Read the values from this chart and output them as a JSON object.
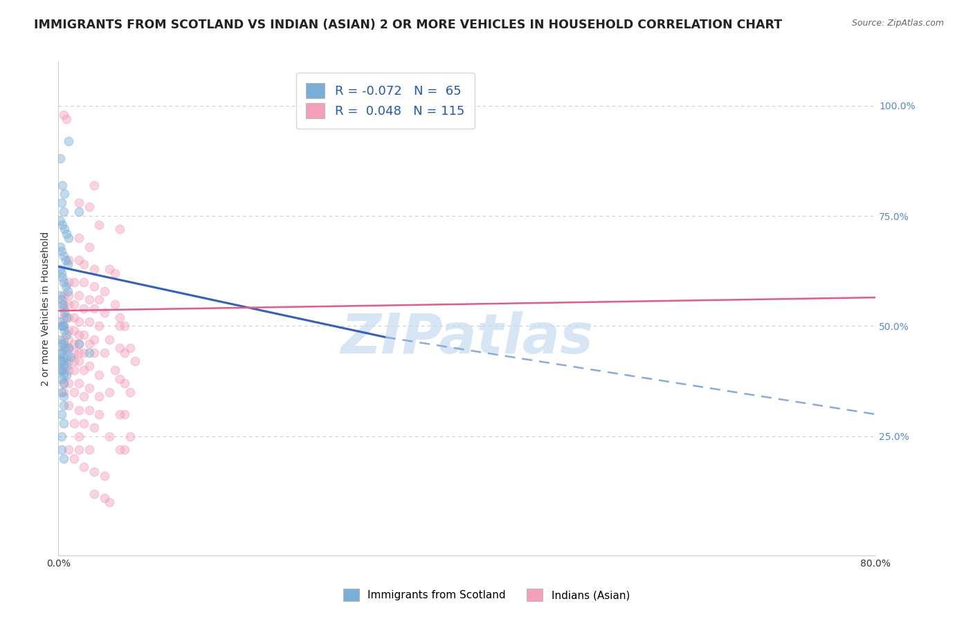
{
  "title": "IMMIGRANTS FROM SCOTLAND VS INDIAN (ASIAN) 2 OR MORE VEHICLES IN HOUSEHOLD CORRELATION CHART",
  "source": "Source: ZipAtlas.com",
  "xlim": [
    0.0,
    0.8
  ],
  "ylim": [
    -0.02,
    1.1
  ],
  "blue_dots": [
    [
      0.002,
      0.88
    ],
    [
      0.01,
      0.92
    ],
    [
      0.004,
      0.82
    ],
    [
      0.006,
      0.8
    ],
    [
      0.003,
      0.78
    ],
    [
      0.005,
      0.76
    ],
    [
      0.02,
      0.76
    ],
    [
      0.002,
      0.74
    ],
    [
      0.004,
      0.73
    ],
    [
      0.006,
      0.72
    ],
    [
      0.008,
      0.71
    ],
    [
      0.01,
      0.7
    ],
    [
      0.002,
      0.68
    ],
    [
      0.003,
      0.67
    ],
    [
      0.005,
      0.66
    ],
    [
      0.007,
      0.65
    ],
    [
      0.009,
      0.64
    ],
    [
      0.002,
      0.63
    ],
    [
      0.003,
      0.62
    ],
    [
      0.004,
      0.61
    ],
    [
      0.005,
      0.6
    ],
    [
      0.007,
      0.59
    ],
    [
      0.009,
      0.58
    ],
    [
      0.002,
      0.57
    ],
    [
      0.003,
      0.56
    ],
    [
      0.004,
      0.55
    ],
    [
      0.005,
      0.54
    ],
    [
      0.006,
      0.53
    ],
    [
      0.008,
      0.52
    ],
    [
      0.002,
      0.51
    ],
    [
      0.003,
      0.5
    ],
    [
      0.004,
      0.5
    ],
    [
      0.005,
      0.5
    ],
    [
      0.006,
      0.49
    ],
    [
      0.008,
      0.48
    ],
    [
      0.002,
      0.47
    ],
    [
      0.003,
      0.46
    ],
    [
      0.005,
      0.46
    ],
    [
      0.007,
      0.45
    ],
    [
      0.01,
      0.45
    ],
    [
      0.002,
      0.44
    ],
    [
      0.003,
      0.44
    ],
    [
      0.005,
      0.43
    ],
    [
      0.008,
      0.43
    ],
    [
      0.012,
      0.43
    ],
    [
      0.002,
      0.42
    ],
    [
      0.003,
      0.42
    ],
    [
      0.005,
      0.41
    ],
    [
      0.008,
      0.41
    ],
    [
      0.002,
      0.4
    ],
    [
      0.003,
      0.4
    ],
    [
      0.005,
      0.39
    ],
    [
      0.008,
      0.39
    ],
    [
      0.003,
      0.38
    ],
    [
      0.005,
      0.37
    ],
    [
      0.003,
      0.35
    ],
    [
      0.005,
      0.34
    ],
    [
      0.005,
      0.32
    ],
    [
      0.003,
      0.3
    ],
    [
      0.005,
      0.28
    ],
    [
      0.003,
      0.25
    ],
    [
      0.003,
      0.22
    ],
    [
      0.005,
      0.2
    ],
    [
      0.02,
      0.46
    ],
    [
      0.03,
      0.44
    ]
  ],
  "pink_dots": [
    [
      0.005,
      0.98
    ],
    [
      0.008,
      0.97
    ],
    [
      0.035,
      0.82
    ],
    [
      0.02,
      0.78
    ],
    [
      0.03,
      0.77
    ],
    [
      0.04,
      0.73
    ],
    [
      0.06,
      0.72
    ],
    [
      0.02,
      0.7
    ],
    [
      0.03,
      0.68
    ],
    [
      0.01,
      0.65
    ],
    [
      0.02,
      0.65
    ],
    [
      0.025,
      0.64
    ],
    [
      0.035,
      0.63
    ],
    [
      0.05,
      0.63
    ],
    [
      0.055,
      0.62
    ],
    [
      0.01,
      0.6
    ],
    [
      0.015,
      0.6
    ],
    [
      0.025,
      0.6
    ],
    [
      0.035,
      0.59
    ],
    [
      0.045,
      0.58
    ],
    [
      0.005,
      0.57
    ],
    [
      0.01,
      0.57
    ],
    [
      0.02,
      0.57
    ],
    [
      0.03,
      0.56
    ],
    [
      0.04,
      0.56
    ],
    [
      0.055,
      0.55
    ],
    [
      0.005,
      0.55
    ],
    [
      0.01,
      0.55
    ],
    [
      0.015,
      0.55
    ],
    [
      0.025,
      0.54
    ],
    [
      0.035,
      0.54
    ],
    [
      0.045,
      0.53
    ],
    [
      0.005,
      0.52
    ],
    [
      0.01,
      0.52
    ],
    [
      0.015,
      0.52
    ],
    [
      0.02,
      0.51
    ],
    [
      0.03,
      0.51
    ],
    [
      0.04,
      0.5
    ],
    [
      0.06,
      0.5
    ],
    [
      0.005,
      0.5
    ],
    [
      0.01,
      0.49
    ],
    [
      0.015,
      0.49
    ],
    [
      0.02,
      0.48
    ],
    [
      0.025,
      0.48
    ],
    [
      0.035,
      0.47
    ],
    [
      0.05,
      0.47
    ],
    [
      0.005,
      0.47
    ],
    [
      0.01,
      0.47
    ],
    [
      0.015,
      0.46
    ],
    [
      0.02,
      0.46
    ],
    [
      0.03,
      0.46
    ],
    [
      0.005,
      0.45
    ],
    [
      0.01,
      0.45
    ],
    [
      0.015,
      0.44
    ],
    [
      0.02,
      0.44
    ],
    [
      0.025,
      0.44
    ],
    [
      0.035,
      0.44
    ],
    [
      0.045,
      0.44
    ],
    [
      0.005,
      0.42
    ],
    [
      0.01,
      0.42
    ],
    [
      0.015,
      0.42
    ],
    [
      0.02,
      0.42
    ],
    [
      0.03,
      0.41
    ],
    [
      0.005,
      0.4
    ],
    [
      0.01,
      0.4
    ],
    [
      0.015,
      0.4
    ],
    [
      0.025,
      0.4
    ],
    [
      0.04,
      0.39
    ],
    [
      0.005,
      0.37
    ],
    [
      0.01,
      0.37
    ],
    [
      0.02,
      0.37
    ],
    [
      0.03,
      0.36
    ],
    [
      0.005,
      0.35
    ],
    [
      0.015,
      0.35
    ],
    [
      0.025,
      0.34
    ],
    [
      0.04,
      0.34
    ],
    [
      0.01,
      0.32
    ],
    [
      0.02,
      0.31
    ],
    [
      0.03,
      0.31
    ],
    [
      0.04,
      0.3
    ],
    [
      0.015,
      0.28
    ],
    [
      0.025,
      0.28
    ],
    [
      0.035,
      0.27
    ],
    [
      0.02,
      0.25
    ],
    [
      0.05,
      0.25
    ],
    [
      0.01,
      0.22
    ],
    [
      0.02,
      0.22
    ],
    [
      0.03,
      0.22
    ],
    [
      0.015,
      0.2
    ],
    [
      0.06,
      0.22
    ],
    [
      0.065,
      0.22
    ],
    [
      0.06,
      0.3
    ],
    [
      0.065,
      0.3
    ],
    [
      0.06,
      0.38
    ],
    [
      0.065,
      0.37
    ],
    [
      0.06,
      0.45
    ],
    [
      0.065,
      0.44
    ],
    [
      0.06,
      0.52
    ],
    [
      0.065,
      0.5
    ],
    [
      0.07,
      0.25
    ],
    [
      0.07,
      0.35
    ],
    [
      0.07,
      0.45
    ],
    [
      0.05,
      0.35
    ],
    [
      0.055,
      0.4
    ],
    [
      0.075,
      0.42
    ],
    [
      0.025,
      0.18
    ],
    [
      0.035,
      0.17
    ],
    [
      0.045,
      0.16
    ],
    [
      0.035,
      0.12
    ],
    [
      0.045,
      0.11
    ],
    [
      0.05,
      0.1
    ]
  ],
  "blue_line_solid": {
    "x0": 0.0,
    "x1": 0.32,
    "y0": 0.635,
    "y1": 0.475
  },
  "blue_line_dashed": {
    "x0": 0.32,
    "x1": 0.8,
    "y0": 0.475,
    "y1": 0.3
  },
  "pink_line": {
    "x0": 0.0,
    "x1": 0.8,
    "y0": 0.535,
    "y1": 0.565
  },
  "blue_dot_color": "#7ab0d8",
  "pink_dot_color": "#f4a0b8",
  "blue_line_color": "#3060c0",
  "blue_dash_color": "#88aadd",
  "pink_line_color": "#e85880",
  "grid_color": "#cccccc",
  "watermark": "ZIPatlas",
  "watermark_color": "#c5dcf0",
  "dot_size": 80,
  "dot_alpha": 0.45,
  "title_fontsize": 12.5,
  "axis_label_fontsize": 10,
  "ytick_color": "#5588cc",
  "xtick_color": "#333333"
}
